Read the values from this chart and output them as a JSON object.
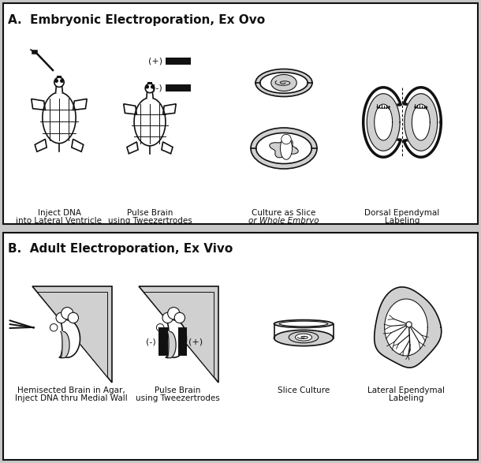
{
  "fig_width": 6.1,
  "fig_height": 5.87,
  "dpi": 100,
  "bg_color": "#c8c8c8",
  "panel_bg": "#ffffff",
  "panel_A_title": "A.  Embryonic Electroporation, Ex Ovo",
  "panel_B_title": "B.  Adult Electroporation, Ex Vivo",
  "panel_A_labels_1": [
    "Inject DNA",
    "into Lateral Ventricle"
  ],
  "panel_A_labels_2": [
    "Pulse Brain",
    "using Tweezertrodes"
  ],
  "panel_A_labels_3_1": "Culture as Slice",
  "panel_A_labels_3_2": "or Whole Embryo",
  "panel_A_labels_4": [
    "Dorsal Ependymal",
    "Labeling"
  ],
  "panel_B_labels_1": [
    "Hemisected Brain in Agar,",
    "Inject DNA thru Medial Wall"
  ],
  "panel_B_labels_2": [
    "Pulse Brain",
    "using Tweezertrodes"
  ],
  "panel_B_labels_3": [
    "Slice Culture"
  ],
  "panel_B_labels_4": [
    "Lateral Ependymal",
    "Labeling"
  ],
  "lw": 1.2,
  "gray": "#b8b8b8",
  "lgray": "#d0d0d0",
  "black": "#111111",
  "white": "#ffffff"
}
